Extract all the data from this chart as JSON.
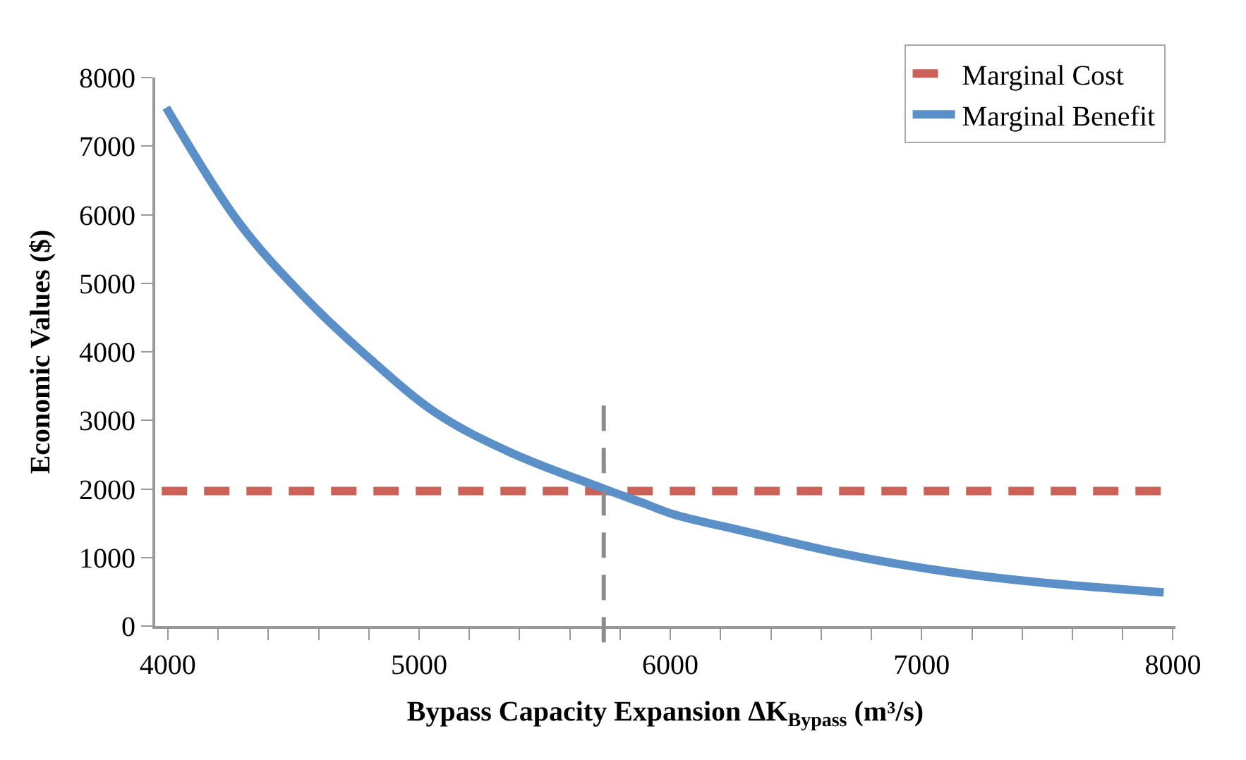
{
  "chart_data": {
    "type": "line",
    "xlabel": "Bypass Capacity Expansion ΔK$_{Bypass}$ (m³/s)",
    "ylabel": "Economic Values ($)",
    "xlim": [
      3950,
      8010
    ],
    "xticks": [
      4000,
      5000,
      6000,
      7000,
      8000
    ],
    "ylim": [
      0,
      8000
    ],
    "yticks": [
      0,
      1000,
      2000,
      3000,
      4000,
      5000,
      6000,
      7000,
      8000
    ],
    "legend": "top right",
    "marker": "none",
    "series": [
      {
        "name": "Marginal Cost",
        "color": "#cc6157",
        "line_style": "dashed",
        "x": [
          3976,
          7953
        ],
        "values": [
          1970,
          1970
        ]
      },
      {
        "name": "Marginal Benefit",
        "color": "#5b8fc8",
        "line_style": "solid",
        "x": [
          3994,
          4286,
          4541,
          4776,
          5071,
          5365,
          5737,
          5894,
          6012,
          6286,
          6678,
          7071,
          7463,
          7963
        ],
        "values": [
          7560,
          5870,
          4810,
          3990,
          3100,
          2530,
          2000,
          1790,
          1630,
          1390,
          1060,
          810,
          640,
          490
        ]
      }
    ],
    "ref_lines": [
      {
        "axis": "x",
        "value": 5735,
        "color": "#8c8c8c",
        "line_style": "dashed"
      }
    ]
  }
}
